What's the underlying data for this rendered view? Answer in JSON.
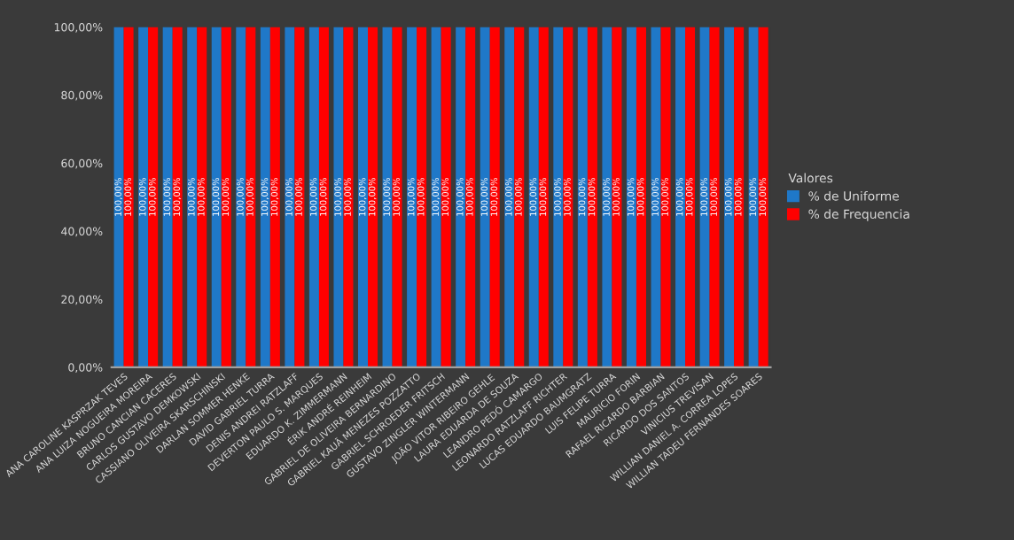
{
  "chart_data": {
    "type": "bar",
    "legend_title": "Valores",
    "legend": "right",
    "categories": [
      "ANA CAROLINE KASPRZAK TEVES",
      "ANA LUIZA NOGUEIRA MOREIRA",
      "BRUNO CANCIAN CACERES",
      "CARLOS GUSTAVO DEMKOWSKI",
      "CASSIANO OLIVEIRA SKARSCHINSKI",
      "DARLAN SOMMER HENKE",
      "DAVID GABRIEL TURRA",
      "DENIS ANDREI RATZLAFF",
      "DEVERTON PAULO S. MARQUES",
      "EDUARDO K. ZIMMERMANN",
      "ÉRIK ANDRÉ REINHEIM",
      "GABRIEL DE OLIVEIRA BERNARDINO",
      "GABRIEL KAUÃ MENEZES POZZATTO",
      "GABRIEL SCHROEDER FRITSCH",
      "GUSTAVO ZINGLER WINTERMANN",
      "JOÃO VITOR RIBEIRO GEHLE",
      "LAURA EDUARDA DE SOUZA",
      "LEANDRO PEDÓ CAMARGO",
      "LEONARDO RATZLAFF RICHTER",
      "LUCAS EDUARDO BAUMGRATZ",
      "LUIS FELIPE TURRA",
      "MAURICIO FORIN",
      "RAFAEL RICARDO BARBIAN",
      "RICARDO DOS SANTOS",
      "VINICIUS TREVISAN",
      "WILLIAN DANIEL A. CORREA LOPES",
      "WILLIAN TADEU FERNANDES SOARES"
    ],
    "series": [
      {
        "name": "% de Uniforme",
        "color": "#1f78c8",
        "values": [
          100,
          100,
          100,
          100,
          100,
          100,
          100,
          100,
          100,
          100,
          100,
          100,
          100,
          100,
          100,
          100,
          100,
          100,
          100,
          100,
          100,
          100,
          100,
          100,
          100,
          100,
          100
        ],
        "value_labels": [
          "100,00%",
          "100,00%",
          "100,00%",
          "100,00%",
          "100,00%",
          "100,00%",
          "100,00%",
          "100,00%",
          "100,00%",
          "100,00%",
          "100,00%",
          "100,00%",
          "100,00%",
          "100,00%",
          "100,00%",
          "100,00%",
          "100,00%",
          "100,00%",
          "100,00%",
          "100,00%",
          "100,00%",
          "100,00%",
          "100,00%",
          "100,00%",
          "100,00%",
          "100,00%",
          "100,00%"
        ]
      },
      {
        "name": "% de Frequencia",
        "color": "#ff0000",
        "values": [
          100,
          100,
          100,
          100,
          100,
          100,
          100,
          100,
          100,
          100,
          100,
          100,
          100,
          100,
          100,
          100,
          100,
          100,
          100,
          100,
          100,
          100,
          100,
          100,
          100,
          100,
          100
        ],
        "value_labels": [
          "100,00%",
          "100,00%",
          "100,00%",
          "100,00%",
          "100,00%",
          "100,00%",
          "100,00%",
          "100,00%",
          "100,00%",
          "100,00%",
          "100,00%",
          "100,00%",
          "100,00%",
          "100,00%",
          "100,00%",
          "100,00%",
          "100,00%",
          "100,00%",
          "100,00%",
          "100,00%",
          "100,00%",
          "100,00%",
          "100,00%",
          "100,00%",
          "100,00%",
          "100,00%",
          "100,00%"
        ]
      }
    ],
    "ylim": [
      0,
      100
    ],
    "yticks": [
      {
        "value": 0,
        "label": "0,00%"
      },
      {
        "value": 20,
        "label": "20,00%"
      },
      {
        "value": 40,
        "label": "40,00%"
      },
      {
        "value": 60,
        "label": "60,00%"
      },
      {
        "value": 80,
        "label": "80,00%"
      },
      {
        "value": 100,
        "label": "100,00%"
      }
    ]
  }
}
